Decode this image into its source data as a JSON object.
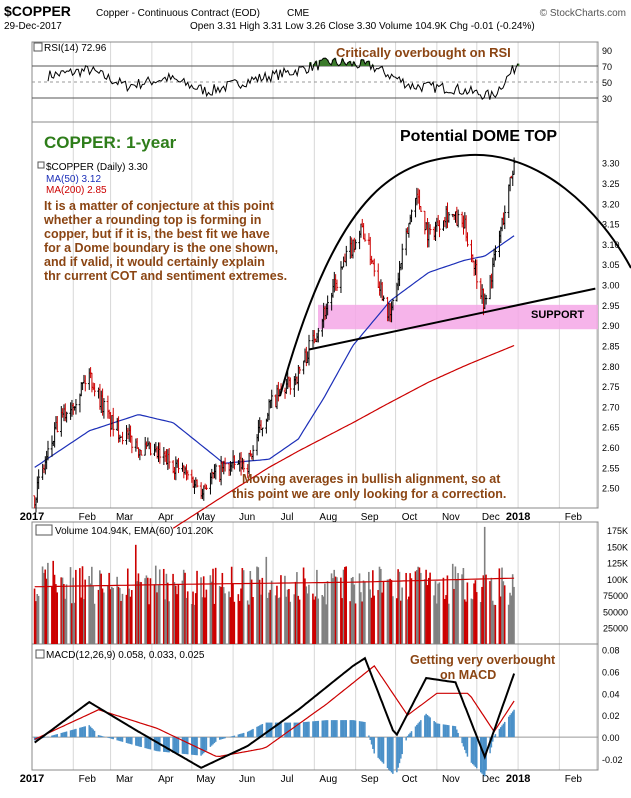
{
  "header": {
    "symbol": "$COPPER",
    "description": "Copper - Continuous Contract (EOD)",
    "exchange": "CME",
    "watermark": "© StockCharts.com",
    "date": "29-Dec-2017",
    "quote": "Open 3.31  High 3.31  Low 3.26  Close 3.30  Volume 104.9K  Chg -0.01 (-0.24%)",
    "chg_color": "#cc0000"
  },
  "annotations": {
    "rsi_note": "Critically overbought on RSI",
    "chart_title": "COPPER: 1-year",
    "dome": "Potential DOME TOP",
    "para_lines": [
      "It is a matter of conjecture at this point",
      "whether a rounding top is forming in",
      "copper, but if it is, the best fit we have",
      "for a Dome boundary is the one shown,",
      "and if valid, it would certainly explain",
      "thr current COT and sentiment extremes."
    ],
    "support": "SUPPORT",
    "ma_lines": [
      "Moving averages in bullish alignment, so at",
      "this point we are only looking for a correction."
    ],
    "macd_lines": [
      "Getting very overbought",
      "on MACD"
    ]
  },
  "colors": {
    "grid": "#d8d8d8",
    "price_up": "#000000",
    "price_down": "#cc0000",
    "ma50": "#1c2fb8",
    "ma200": "#cc0000",
    "rsi_fill": "#3a7a2a",
    "rsi_line": "#000000",
    "support_band": "#f4a7e6",
    "note_brown": "#8b4513",
    "title_green": "#2e7d1a",
    "volume_up": "#808080",
    "volume_down": "#cc0000",
    "vol_ema": "#cc0000",
    "macd_line": "#000000",
    "macd_signal": "#cc0000",
    "macd_hist": "#4a90c8"
  },
  "chart_data": [
    {
      "type": "line",
      "panel": "rsi",
      "legend": [
        "RSI(14) 72.96"
      ],
      "ylim": [
        0,
        100
      ],
      "y_ticks": [
        "90",
        "70",
        "50",
        "30"
      ],
      "reference_lines": [
        70,
        30
      ],
      "x": [
        "2017-01",
        "2017-02",
        "2017-03",
        "2017-04",
        "2017-05",
        "2017-06",
        "2017-07",
        "2017-08",
        "2017-09",
        "2017-10",
        "2017-11",
        "2017-12",
        "2017-12-29"
      ],
      "values": [
        58,
        65,
        45,
        55,
        38,
        52,
        62,
        75,
        70,
        45,
        42,
        32,
        73
      ]
    },
    {
      "type": "line",
      "panel": "price",
      "legend": [
        "$COPPER (Daily) 3.30",
        "MA(50) 3.12",
        "MA(200) 2.85"
      ],
      "ylim": [
        2.45,
        3.4
      ],
      "y_ticks": [
        "3.30",
        "3.25",
        "3.20",
        "3.15",
        "3.10",
        "3.05",
        "3.00",
        "2.95",
        "2.90",
        "2.85",
        "2.80",
        "2.75",
        "2.70",
        "2.65",
        "2.60",
        "2.55",
        "2.50"
      ],
      "x_ticks": [
        "2017",
        "Feb",
        "Mar",
        "Apr",
        "May",
        "Jun",
        "Jul",
        "Aug",
        "Sep",
        "Oct",
        "Nov",
        "Dec",
        "2018",
        "Feb"
      ],
      "series": [
        {
          "name": "$COPPER (Daily)",
          "x": [
            "2017-01-03",
            "2017-01-20",
            "2017-02-13",
            "2017-03-01",
            "2017-03-22",
            "2017-04-17",
            "2017-05-08",
            "2017-05-25",
            "2017-06-12",
            "2017-06-28",
            "2017-07-20",
            "2017-08-08",
            "2017-08-30",
            "2017-09-06",
            "2017-09-27",
            "2017-10-05",
            "2017-10-16",
            "2017-10-26",
            "2017-11-08",
            "2017-11-22",
            "2017-12-07",
            "2017-12-20",
            "2017-12-29"
          ],
          "values": [
            2.48,
            2.65,
            2.78,
            2.66,
            2.6,
            2.56,
            2.5,
            2.55,
            2.56,
            2.7,
            2.78,
            2.93,
            3.1,
            3.14,
            2.92,
            3.05,
            3.23,
            3.12,
            3.18,
            3.14,
            2.95,
            3.15,
            3.3
          ]
        },
        {
          "name": "MA(50)",
          "x": [
            "2017-01-03",
            "2017-02-13",
            "2017-03-22",
            "2017-04-17",
            "2017-05-25",
            "2017-06-28",
            "2017-07-20",
            "2017-08-08",
            "2017-08-30",
            "2017-09-27",
            "2017-10-26",
            "2017-11-22",
            "2017-12-07",
            "2017-12-29"
          ],
          "values": [
            2.55,
            2.64,
            2.68,
            2.66,
            2.56,
            2.57,
            2.62,
            2.72,
            2.85,
            2.96,
            3.03,
            3.06,
            3.07,
            3.12
          ]
        },
        {
          "name": "MA(200)",
          "x": [
            "2017-04-17",
            "2017-05-25",
            "2017-06-28",
            "2017-07-20",
            "2017-08-30",
            "2017-09-27",
            "2017-10-26",
            "2017-11-22",
            "2017-12-29"
          ],
          "values": [
            2.4,
            2.48,
            2.55,
            2.59,
            2.66,
            2.71,
            2.76,
            2.8,
            2.85
          ]
        }
      ],
      "annotations": {
        "support_band": [
          2.89,
          2.95
        ],
        "support_line": [
          {
            "x": "2017-07-28",
            "y": 2.84
          },
          {
            "x": "2018-02-28",
            "y": 2.99
          }
        ]
      }
    },
    {
      "type": "bar",
      "panel": "volume",
      "legend": [
        "Volume 104.94K, EMA(60) 101.20K"
      ],
      "ylim": [
        0,
        187500
      ],
      "y_ticks": [
        "175K",
        "150K",
        "125K",
        "100K",
        "75000",
        "50000",
        "25000"
      ],
      "series": [
        {
          "name": "Volume",
          "level_range": [
            60000,
            120000
          ],
          "spikes": [
            {
              "x": "2017-12-07",
              "value": 180000
            }
          ]
        },
        {
          "name": "EMA(60)",
          "values": [
            88000,
            92000,
            95000,
            101200
          ]
        }
      ]
    },
    {
      "type": "line",
      "panel": "macd",
      "legend": [
        "MACD(12,26,9) 0.058, 0.033, 0.025"
      ],
      "ylim": [
        -0.03,
        0.085
      ],
      "y_ticks": [
        "0.08",
        "0.06",
        "0.04",
        "0.02",
        "0.00",
        "-0.02"
      ],
      "x_ticks": [
        "2017",
        "Feb",
        "Mar",
        "Apr",
        "May",
        "Jun",
        "Jul",
        "Aug",
        "Sep",
        "Oct",
        "Nov",
        "Dec",
        "2018",
        "Feb"
      ],
      "series": [
        {
          "name": "MACD",
          "x": [
            "2017-01-03",
            "2017-02-13",
            "2017-03-22",
            "2017-05-08",
            "2017-06-12",
            "2017-07-20",
            "2017-08-30",
            "2017-09-08",
            "2017-10-01",
            "2017-10-24",
            "2017-11-15",
            "2017-12-07",
            "2017-12-29"
          ],
          "values": [
            -0.005,
            0.032,
            0.005,
            -0.028,
            -0.008,
            0.025,
            0.065,
            0.072,
            0.0,
            0.054,
            0.05,
            -0.018,
            0.058
          ]
        },
        {
          "name": "Signal",
          "x": [
            "2017-01-03",
            "2017-02-20",
            "2017-04-05",
            "2017-05-20",
            "2017-06-25",
            "2017-08-10",
            "2017-09-15",
            "2017-10-10",
            "2017-11-01",
            "2017-11-25",
            "2017-12-14",
            "2017-12-29"
          ],
          "values": [
            -0.002,
            0.025,
            0.008,
            -0.018,
            -0.01,
            0.03,
            0.065,
            0.02,
            0.04,
            0.04,
            0.005,
            0.033
          ]
        },
        {
          "name": "Histogram",
          "values_last": 0.025
        }
      ]
    }
  ]
}
